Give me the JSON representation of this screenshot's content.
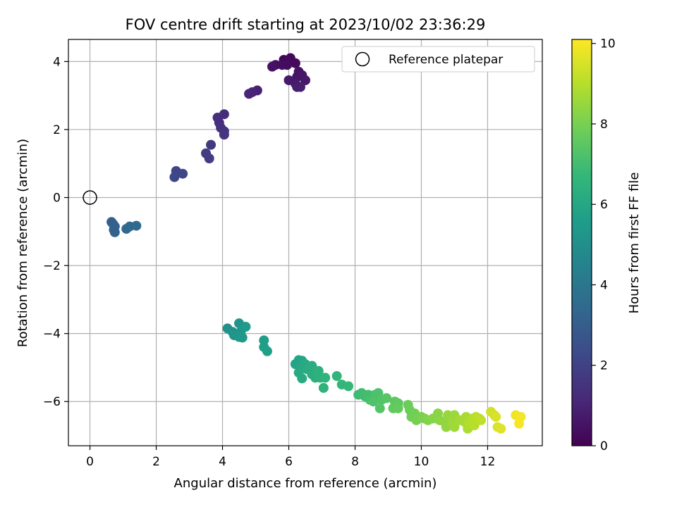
{
  "chart_data": {
    "type": "scatter",
    "title": "FOV centre drift starting at 2023/10/02 23:36:29",
    "xlabel": "Angular distance from reference (arcmin)",
    "ylabel": "Rotation from reference (arcmin)",
    "xlim": [
      -0.65,
      13.65
    ],
    "ylim": [
      -7.3,
      4.65
    ],
    "xticks": [
      0,
      2,
      4,
      6,
      8,
      10,
      12
    ],
    "yticks": [
      -6,
      -4,
      -2,
      0,
      2,
      4
    ],
    "grid": true,
    "legend": {
      "position": "upper-right",
      "entries": [
        {
          "label": "Reference platepar",
          "marker": "open-circle",
          "color": "#000000"
        }
      ]
    },
    "reference_point": {
      "x": 0,
      "y": 0
    },
    "colorbar": {
      "label": "Hours from first FF file",
      "range": [
        0,
        10.1
      ],
      "ticks": [
        0,
        2,
        4,
        6,
        8,
        10
      ],
      "colormap": [
        "#440154",
        "#482878",
        "#3e4989",
        "#31688e",
        "#26828e",
        "#1f9e89",
        "#35b779",
        "#6ece58",
        "#b5de2b",
        "#fde725"
      ]
    },
    "series": [
      {
        "points": [
          {
            "x": 6.0,
            "y": 4.05,
            "c": 0.1
          },
          {
            "x": 5.85,
            "y": 4.05,
            "c": 0.15
          },
          {
            "x": 6.05,
            "y": 4.1,
            "c": 0.2
          },
          {
            "x": 6.2,
            "y": 3.95,
            "c": 0.25
          },
          {
            "x": 5.95,
            "y": 3.9,
            "c": 0.3
          },
          {
            "x": 5.8,
            "y": 3.9,
            "c": 0.35
          },
          {
            "x": 5.6,
            "y": 3.9,
            "c": 0.4
          },
          {
            "x": 5.5,
            "y": 3.85,
            "c": 0.45
          },
          {
            "x": 6.3,
            "y": 3.7,
            "c": 0.5
          },
          {
            "x": 6.25,
            "y": 3.55,
            "c": 0.55
          },
          {
            "x": 6.4,
            "y": 3.6,
            "c": 0.6
          },
          {
            "x": 6.5,
            "y": 3.45,
            "c": 0.65
          },
          {
            "x": 6.0,
            "y": 3.45,
            "c": 0.7
          },
          {
            "x": 6.2,
            "y": 3.35,
            "c": 0.75
          },
          {
            "x": 6.25,
            "y": 3.25,
            "c": 0.8
          },
          {
            "x": 6.35,
            "y": 3.25,
            "c": 0.85
          },
          {
            "x": 5.05,
            "y": 3.15,
            "c": 0.95
          },
          {
            "x": 4.9,
            "y": 3.1,
            "c": 1.0
          },
          {
            "x": 4.8,
            "y": 3.05,
            "c": 1.05
          },
          {
            "x": 4.05,
            "y": 2.45,
            "c": 1.3
          },
          {
            "x": 3.85,
            "y": 2.35,
            "c": 1.35
          },
          {
            "x": 3.9,
            "y": 2.2,
            "c": 1.4
          },
          {
            "x": 3.95,
            "y": 2.05,
            "c": 1.45
          },
          {
            "x": 4.05,
            "y": 1.95,
            "c": 1.5
          },
          {
            "x": 4.05,
            "y": 1.85,
            "c": 1.55
          },
          {
            "x": 3.65,
            "y": 1.55,
            "c": 1.7
          },
          {
            "x": 3.5,
            "y": 1.3,
            "c": 1.8
          },
          {
            "x": 3.6,
            "y": 1.15,
            "c": 1.85
          },
          {
            "x": 2.6,
            "y": 0.78,
            "c": 2.1
          },
          {
            "x": 2.8,
            "y": 0.7,
            "c": 2.15
          },
          {
            "x": 2.55,
            "y": 0.6,
            "c": 2.2
          },
          {
            "x": 0.65,
            "y": -0.72,
            "c": 3.0
          },
          {
            "x": 0.7,
            "y": -0.78,
            "c": 3.05
          },
          {
            "x": 0.75,
            "y": -0.85,
            "c": 3.1
          },
          {
            "x": 0.72,
            "y": -0.95,
            "c": 3.15
          },
          {
            "x": 0.75,
            "y": -1.02,
            "c": 3.2
          },
          {
            "x": 1.1,
            "y": -0.92,
            "c": 3.35
          },
          {
            "x": 1.2,
            "y": -0.85,
            "c": 3.4
          },
          {
            "x": 1.4,
            "y": -0.83,
            "c": 3.45
          },
          {
            "x": 4.15,
            "y": -3.85,
            "c": 5.1
          },
          {
            "x": 4.3,
            "y": -3.95,
            "c": 5.15
          },
          {
            "x": 4.35,
            "y": -4.05,
            "c": 5.2
          },
          {
            "x": 4.5,
            "y": -3.7,
            "c": 5.25
          },
          {
            "x": 4.55,
            "y": -3.95,
            "c": 5.3
          },
          {
            "x": 4.5,
            "y": -4.1,
            "c": 5.35
          },
          {
            "x": 4.6,
            "y": -4.12,
            "c": 5.4
          },
          {
            "x": 4.7,
            "y": -3.8,
            "c": 5.45
          },
          {
            "x": 5.25,
            "y": -4.2,
            "c": 5.6
          },
          {
            "x": 5.25,
            "y": -4.4,
            "c": 5.65
          },
          {
            "x": 5.35,
            "y": -4.52,
            "c": 5.7
          },
          {
            "x": 6.2,
            "y": -4.9,
            "c": 5.85
          },
          {
            "x": 6.3,
            "y": -4.78,
            "c": 5.9
          },
          {
            "x": 6.4,
            "y": -4.8,
            "c": 5.95
          },
          {
            "x": 6.35,
            "y": -5.0,
            "c": 6.0
          },
          {
            "x": 6.5,
            "y": -4.9,
            "c": 6.05
          },
          {
            "x": 6.3,
            "y": -5.15,
            "c": 6.1
          },
          {
            "x": 6.4,
            "y": -5.32,
            "c": 6.15
          },
          {
            "x": 6.55,
            "y": -5.05,
            "c": 6.2
          },
          {
            "x": 6.7,
            "y": -4.95,
            "c": 6.25
          },
          {
            "x": 6.7,
            "y": -5.2,
            "c": 6.3
          },
          {
            "x": 6.8,
            "y": -5.3,
            "c": 6.35
          },
          {
            "x": 6.9,
            "y": -5.1,
            "c": 6.4
          },
          {
            "x": 6.95,
            "y": -5.3,
            "c": 6.45
          },
          {
            "x": 7.05,
            "y": -5.6,
            "c": 6.5
          },
          {
            "x": 7.1,
            "y": -5.3,
            "c": 6.55
          },
          {
            "x": 7.45,
            "y": -5.25,
            "c": 6.65
          },
          {
            "x": 7.6,
            "y": -5.5,
            "c": 6.7
          },
          {
            "x": 7.8,
            "y": -5.55,
            "c": 6.75
          },
          {
            "x": 8.1,
            "y": -5.8,
            "c": 6.9
          },
          {
            "x": 8.2,
            "y": -5.75,
            "c": 6.95
          },
          {
            "x": 8.3,
            "y": -5.85,
            "c": 7.0
          },
          {
            "x": 8.4,
            "y": -5.8,
            "c": 7.05
          },
          {
            "x": 8.45,
            "y": -5.95,
            "c": 7.1
          },
          {
            "x": 8.6,
            "y": -5.8,
            "c": 7.15
          },
          {
            "x": 8.7,
            "y": -5.75,
            "c": 7.2
          },
          {
            "x": 8.55,
            "y": -6.0,
            "c": 7.25
          },
          {
            "x": 8.8,
            "y": -5.95,
            "c": 7.3
          },
          {
            "x": 8.75,
            "y": -6.2,
            "c": 7.35
          },
          {
            "x": 8.95,
            "y": -5.9,
            "c": 7.4
          },
          {
            "x": 9.2,
            "y": -6.0,
            "c": 7.5
          },
          {
            "x": 9.3,
            "y": -6.05,
            "c": 7.55
          },
          {
            "x": 9.15,
            "y": -6.2,
            "c": 7.6
          },
          {
            "x": 9.3,
            "y": -6.2,
            "c": 7.65
          },
          {
            "x": 9.6,
            "y": -6.1,
            "c": 7.75
          },
          {
            "x": 9.65,
            "y": -6.25,
            "c": 7.8
          },
          {
            "x": 9.7,
            "y": -6.45,
            "c": 7.85
          },
          {
            "x": 9.8,
            "y": -6.35,
            "c": 7.9
          },
          {
            "x": 9.85,
            "y": -6.55,
            "c": 7.95
          },
          {
            "x": 10.0,
            "y": -6.45,
            "c": 8.05
          },
          {
            "x": 10.1,
            "y": -6.5,
            "c": 8.1
          },
          {
            "x": 10.2,
            "y": -6.55,
            "c": 8.15
          },
          {
            "x": 10.35,
            "y": -6.5,
            "c": 8.25
          },
          {
            "x": 10.5,
            "y": -6.35,
            "c": 8.3
          },
          {
            "x": 10.55,
            "y": -6.55,
            "c": 8.35
          },
          {
            "x": 10.7,
            "y": -6.6,
            "c": 8.4
          },
          {
            "x": 10.75,
            "y": -6.75,
            "c": 8.45
          },
          {
            "x": 10.8,
            "y": -6.4,
            "c": 8.5
          },
          {
            "x": 11.0,
            "y": -6.4,
            "c": 8.55
          },
          {
            "x": 10.95,
            "y": -6.6,
            "c": 8.6
          },
          {
            "x": 11.0,
            "y": -6.75,
            "c": 8.65
          },
          {
            "x": 11.15,
            "y": -6.55,
            "c": 8.7
          },
          {
            "x": 11.3,
            "y": -6.6,
            "c": 8.75
          },
          {
            "x": 11.35,
            "y": -6.45,
            "c": 8.8
          },
          {
            "x": 11.4,
            "y": -6.8,
            "c": 8.85
          },
          {
            "x": 11.45,
            "y": -6.65,
            "c": 8.9
          },
          {
            "x": 11.55,
            "y": -6.5,
            "c": 8.95
          },
          {
            "x": 11.6,
            "y": -6.7,
            "c": 9.0
          },
          {
            "x": 11.65,
            "y": -6.45,
            "c": 9.05
          },
          {
            "x": 11.75,
            "y": -6.5,
            "c": 9.1
          },
          {
            "x": 11.8,
            "y": -6.55,
            "c": 9.15
          },
          {
            "x": 12.1,
            "y": -6.3,
            "c": 9.4
          },
          {
            "x": 12.2,
            "y": -6.4,
            "c": 9.45
          },
          {
            "x": 12.25,
            "y": -6.45,
            "c": 9.5
          },
          {
            "x": 12.3,
            "y": -6.75,
            "c": 9.55
          },
          {
            "x": 12.4,
            "y": -6.8,
            "c": 9.6
          },
          {
            "x": 12.85,
            "y": -6.4,
            "c": 9.85
          },
          {
            "x": 13.0,
            "y": -6.45,
            "c": 9.95
          },
          {
            "x": 12.95,
            "y": -6.65,
            "c": 10.0
          }
        ]
      }
    ]
  }
}
